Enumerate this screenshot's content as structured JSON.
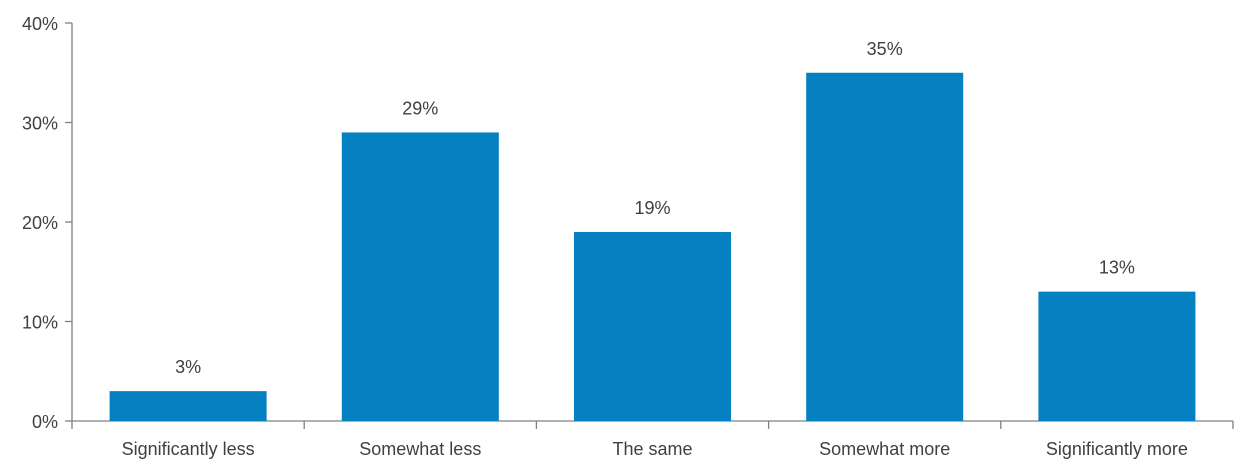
{
  "chart_data": {
    "type": "bar",
    "title": "",
    "xlabel": "",
    "ylabel": "",
    "categories": [
      "Significantly less",
      "Somewhat less",
      "The same",
      "Somewhat more",
      "Significantly more"
    ],
    "values": [
      3,
      29,
      19,
      35,
      13
    ],
    "data_labels": [
      "3%",
      "29%",
      "19%",
      "35%",
      "13%"
    ],
    "ylim": [
      0,
      40
    ],
    "yticks": [
      0,
      10,
      20,
      30,
      40
    ],
    "ytick_labels": [
      "0%",
      "10%",
      "20%",
      "30%",
      "40%"
    ],
    "grid": false,
    "legend": "none",
    "bar_color": "#0580c0"
  }
}
